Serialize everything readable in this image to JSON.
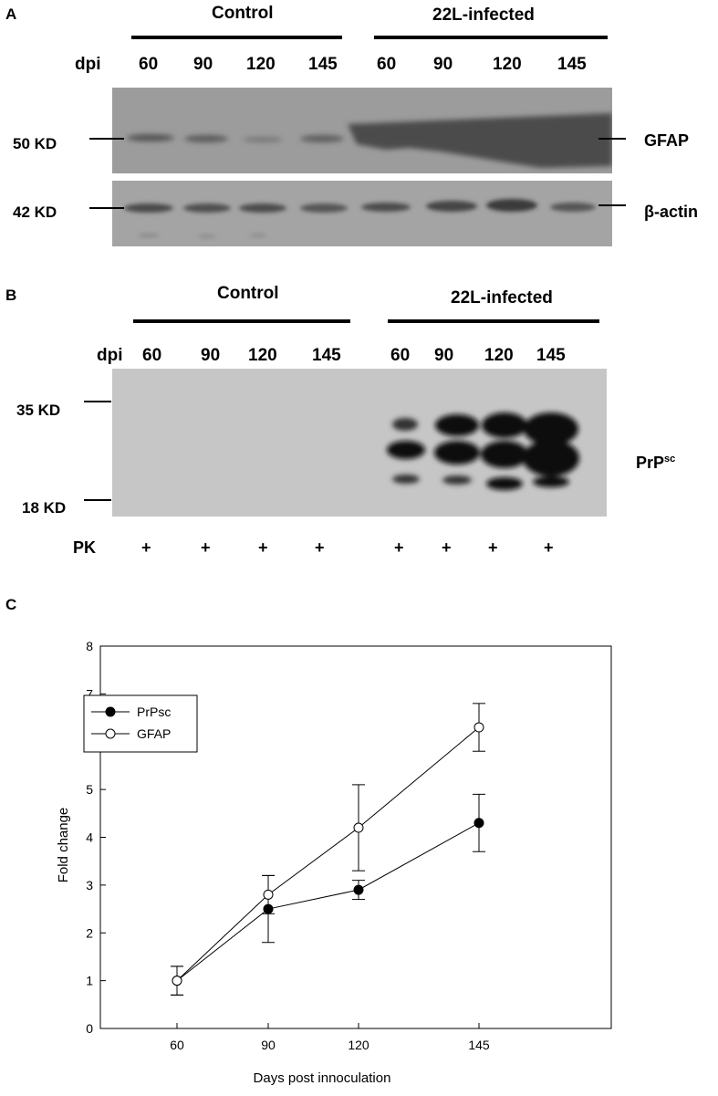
{
  "panel_a": {
    "letter": "A",
    "group_control": "Control",
    "group_infected": "22L-infected",
    "dpi_label": "dpi",
    "dpi_values": [
      "60",
      "90",
      "120",
      "145",
      "60",
      "90",
      "120",
      "145"
    ],
    "kd_gfap": "50 KD",
    "kd_actin": "42 KD",
    "label_gfap": "GFAP",
    "label_actin": "β-actin"
  },
  "panel_b": {
    "letter": "B",
    "group_control": "Control",
    "group_infected": "22L-infected",
    "dpi_label": "dpi",
    "dpi_values": [
      "60",
      "90",
      "120",
      "145",
      "60",
      "90",
      "120",
      "145"
    ],
    "kd_top": "35 KD",
    "kd_bottom": "18 KD",
    "label_prp": "PrP",
    "label_prp_sup": "sc",
    "pk_label": "PK",
    "pk_marks": [
      "+",
      "+",
      "+",
      "+",
      "+",
      "+",
      "+",
      "+"
    ]
  },
  "panel_c": {
    "letter": "C"
  },
  "chart_data": {
    "type": "line",
    "xlabel": "Days post innoculation",
    "ylabel": "Fold change",
    "x": [
      "60",
      "90",
      "120",
      "145"
    ],
    "ylim": [
      0,
      8
    ],
    "yticks": [
      0,
      1,
      2,
      3,
      4,
      5,
      6,
      7,
      8
    ],
    "grid": false,
    "legend": "top-left",
    "series": [
      {
        "name": "PrPsc",
        "marker": "filled-circle",
        "color": "#000000",
        "values": [
          1.0,
          2.5,
          2.9,
          4.3
        ],
        "errors": [
          0.3,
          0.7,
          0.2,
          0.6
        ]
      },
      {
        "name": "GFAP",
        "marker": "open-circle",
        "color": "#000000",
        "values": [
          1.0,
          2.8,
          4.2,
          6.3
        ],
        "errors": [
          0.3,
          0.4,
          0.9,
          0.5
        ]
      }
    ]
  }
}
